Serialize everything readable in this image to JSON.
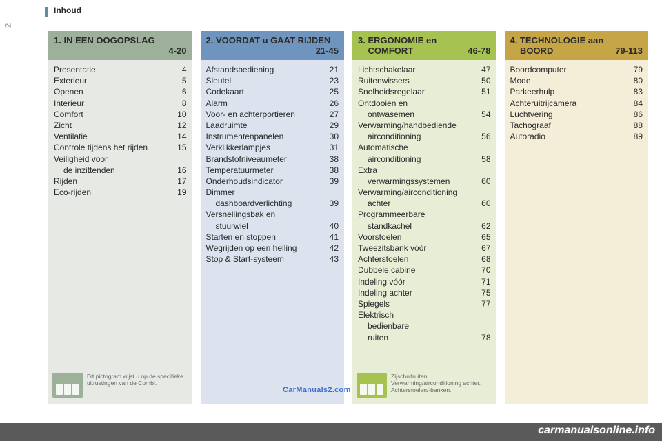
{
  "page": {
    "header": "Inhoud",
    "number": "2"
  },
  "watermark": "CarManuals2.com",
  "footer": "carmanualsonline.info",
  "columns": [
    {
      "head_bg": "#9cb09a",
      "body_bg": "#e6e9e4",
      "pict_bg": "#9cb09a",
      "title_line1": "1. IN EEN OOGOPSLAG",
      "title_line2": "4-20",
      "items": [
        {
          "label": "Presentatie",
          "page": "4"
        },
        {
          "label": "Exterieur",
          "page": "5"
        },
        {
          "label": "Openen",
          "page": "6"
        },
        {
          "label": "Interieur",
          "page": "8"
        },
        {
          "label": "Comfort",
          "page": "10"
        },
        {
          "label": "Zicht",
          "page": "12"
        },
        {
          "label": "Ventilatie",
          "page": "14"
        },
        {
          "label": "Controle tijdens het rijden",
          "page": "15"
        },
        {
          "label": "Veiligheid voor",
          "page": ""
        },
        {
          "label": "de inzittenden",
          "page": "16",
          "indent": true
        },
        {
          "label": "Rijden",
          "page": "17"
        },
        {
          "label": "Eco-rijden",
          "page": "19"
        }
      ],
      "pict_text": "Dit pictogram wijst u op de specifieke uitrustingen van de Combi."
    },
    {
      "head_bg": "#6f94bd",
      "body_bg": "#dce3ee",
      "pict_bg": "",
      "title_line1": "2. VOORDAT u GAAT RIJDEN",
      "title_line2": "21-45",
      "items": [
        {
          "label": "Afstandsbediening",
          "page": "21"
        },
        {
          "label": "Sleutel",
          "page": "23"
        },
        {
          "label": "Codekaart",
          "page": "25"
        },
        {
          "label": "Alarm",
          "page": "26"
        },
        {
          "label": "Voor- en achterportieren",
          "page": "27"
        },
        {
          "label": "Laadruimte",
          "page": "29"
        },
        {
          "label": "Instrumentenpanelen",
          "page": "30"
        },
        {
          "label": "Verklikkerlampjes",
          "page": "31"
        },
        {
          "label": "Brandstofniveaumeter",
          "page": "38"
        },
        {
          "label": "Temperatuurmeter",
          "page": "38"
        },
        {
          "label": "Onderhoudsindicator",
          "page": "39"
        },
        {
          "label": "Dimmer",
          "page": ""
        },
        {
          "label": "dashboardverlichting",
          "page": "39",
          "indent": true
        },
        {
          "label": "Versnellingsbak en",
          "page": ""
        },
        {
          "label": "stuurwiel",
          "page": "40",
          "indent": true
        },
        {
          "label": "Starten en stoppen",
          "page": "41"
        },
        {
          "label": "Wegrijden op een helling",
          "page": "42"
        },
        {
          "label": "Stop & Start-systeem",
          "page": "43"
        }
      ],
      "pict_text": ""
    },
    {
      "head_bg": "#a6c251",
      "body_bg": "#e8eed6",
      "pict_bg": "#a6c251",
      "title_line1_a": "3. ERGONOMIE en",
      "title_line1_b": "",
      "title_line2_a": "COMFORT",
      "title_line2_b": "46-78",
      "two_line_head": true,
      "items": [
        {
          "label": "Lichtschakelaar",
          "page": "47"
        },
        {
          "label": "Ruitenwissers",
          "page": "50"
        },
        {
          "label": "Snelheidsregelaar",
          "page": "51"
        },
        {
          "label": "Ontdooien en",
          "page": ""
        },
        {
          "label": "ontwasemen",
          "page": "54",
          "indent": true
        },
        {
          "label": "Verwarming/handbediende",
          "page": ""
        },
        {
          "label": "airconditioning",
          "page": "56",
          "indent": true
        },
        {
          "label": "Automatische",
          "page": ""
        },
        {
          "label": "airconditioning",
          "page": "58",
          "indent": true
        },
        {
          "label": "Extra",
          "page": ""
        },
        {
          "label": "verwarmingssystemen",
          "page": "60",
          "indent": true
        },
        {
          "label": "Verwarming/airconditioning",
          "page": ""
        },
        {
          "label": "achter",
          "page": "60",
          "indent": true
        },
        {
          "label": "Programmeerbare",
          "page": ""
        },
        {
          "label": "standkachel",
          "page": "62",
          "indent": true
        },
        {
          "label": "Voorstoelen",
          "page": "65"
        },
        {
          "label": "Tweezitsbank vóór",
          "page": "67"
        },
        {
          "label": "Achterstoelen",
          "page": "68"
        },
        {
          "label": "Dubbele cabine",
          "page": "70"
        },
        {
          "label": "Indeling vóór",
          "page": "71"
        },
        {
          "label": "Indeling achter",
          "page": "75"
        },
        {
          "label": "Spiegels",
          "page": "77"
        },
        {
          "label": "Elektrisch",
          "page": ""
        },
        {
          "label": "bedienbare",
          "page": "",
          "indent": true
        },
        {
          "label": "ruiten",
          "page": "78",
          "indent": true
        }
      ],
      "pict_text": "Zijschuifruiten.\nVerwarming/airconditioning achter.\nAchterstoelen/-banken."
    },
    {
      "head_bg": "#c6a546",
      "body_bg": "#f4eed9",
      "pict_bg": "",
      "title_line1_a": "4. TECHNOLOGIE aan",
      "title_line1_b": "",
      "title_line2_a": "BOORD",
      "title_line2_b": "79-113",
      "two_line_head": true,
      "items": [
        {
          "label": "Boordcomputer",
          "page": "79"
        },
        {
          "label": "Mode",
          "page": "80"
        },
        {
          "label": "Parkeerhulp",
          "page": "83"
        },
        {
          "label": "Achteruitrijcamera",
          "page": "84"
        },
        {
          "label": "Luchtvering",
          "page": "86"
        },
        {
          "label": "Tachograaf",
          "page": "88"
        },
        {
          "label": "Autoradio",
          "page": "89"
        }
      ],
      "pict_text": ""
    }
  ]
}
